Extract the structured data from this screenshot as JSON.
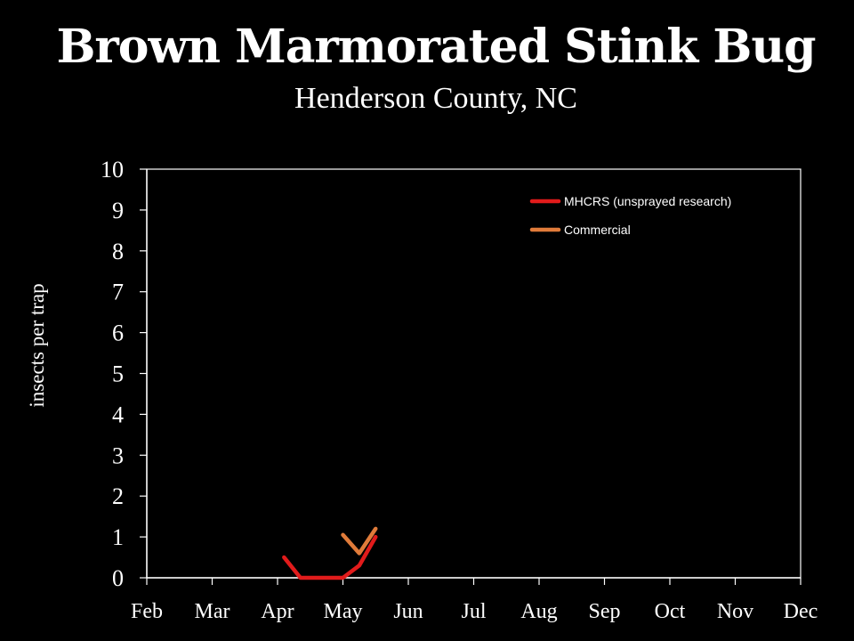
{
  "chart_data": {
    "type": "line",
    "title": "Brown Marmorated Stink Bug",
    "subtitle": "Henderson County, NC",
    "xlabel": "",
    "ylabel": "insects per trap",
    "categories": [
      "Feb",
      "Mar",
      "Apr",
      "May",
      "Jun",
      "Jul",
      "Aug",
      "Sep",
      "Oct",
      "Nov",
      "Dec"
    ],
    "ylim": [
      0,
      10
    ],
    "yticks": [
      "0",
      "1",
      "2",
      "3",
      "4",
      "5",
      "6",
      "7",
      "8",
      "9",
      "10"
    ],
    "grid": false,
    "legend_position": "top-right",
    "series": [
      {
        "name": "MHCRS (unsprayed research)",
        "color": "#e11b1b",
        "points": [
          [
            2.1,
            0.5
          ],
          [
            2.35,
            0.0
          ],
          [
            3.0,
            0.0
          ],
          [
            3.25,
            0.3
          ],
          [
            3.5,
            1.0
          ]
        ]
      },
      {
        "name": "Commercial",
        "color": "#e07b3a",
        "points": [
          [
            3.0,
            1.05
          ],
          [
            3.25,
            0.6
          ],
          [
            3.5,
            1.2
          ]
        ]
      }
    ]
  }
}
